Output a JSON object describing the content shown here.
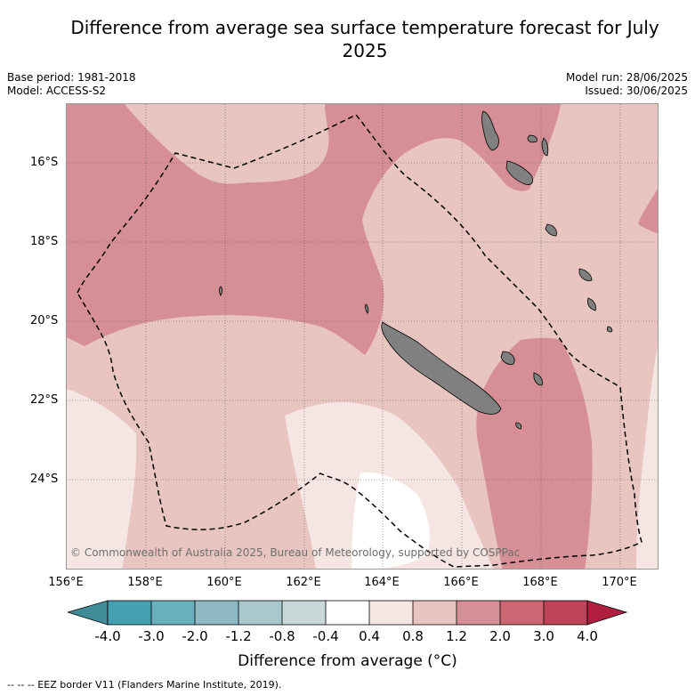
{
  "title": "Difference from average sea surface temperature forecast for July 2025",
  "base_period": "Base period: 1981-2018",
  "model": "Model: ACCESS-S2",
  "model_run": "Model run: 28/06/2025",
  "issued": "Issued: 30/06/2025",
  "copyright": "© Commonwealth of Australia 2025, Bureau of Meteorology, supported by COSPPac",
  "lat_labels": [
    "16°S",
    "18°S",
    "20°S",
    "22°S",
    "24°S"
  ],
  "lon_labels": [
    "156°E",
    "158°E",
    "160°E",
    "162°E",
    "164°E",
    "166°E",
    "168°E",
    "170°E"
  ],
  "colorbar": {
    "title": "Difference from average (°C)",
    "tick_labels": [
      "-4.0",
      "-3.0",
      "-2.0",
      "-1.2",
      "-0.8",
      "-0.4",
      "0.4",
      "0.8",
      "1.2",
      "2.0",
      "3.0",
      "4.0"
    ],
    "colors": {
      "below": "#3f8b98",
      "-4.0": "#45a0b1",
      "-3.0": "#6aafbd",
      "-2.0": "#8eb9c4",
      "-1.2": "#a8c8cd",
      "-0.8": "#c9d9da",
      "-0.4": "#ffffff",
      "0.4": "#f5e6e4",
      "0.8": "#e8c5c0",
      "1.2": "#d68f96",
      "2.0": "#cb6672",
      "3.0": "#bf4356",
      "above": "#b11f3e"
    }
  },
  "map_colors": {
    "band_0_4_0_8": "#f5e6e4",
    "band_0_8_1_2": "#e8c5c0",
    "band_1_2_2_0": "#d68f96",
    "below_0_4": "#ffffff",
    "land": "#808080"
  },
  "eez_note": "--  --  -- EEZ border V11 (Flanders Marine Institute, 2019)."
}
